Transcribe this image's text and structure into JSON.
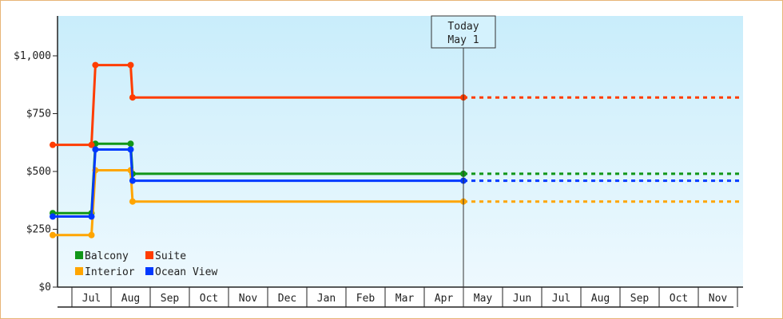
{
  "chart_data": {
    "type": "line",
    "step": true,
    "y_tick_labels": [
      "$0",
      "$250",
      "$500",
      "$750",
      "$1,000"
    ],
    "y_ticks": [
      0,
      250,
      500,
      750,
      1000
    ],
    "ylim": [
      0,
      1000
    ],
    "x_tick_labels": [
      "Jul",
      "Aug",
      "Sep",
      "Oct",
      "Nov",
      "Dec",
      "Jan",
      "Feb",
      "Mar",
      "Apr",
      "May",
      "Jun",
      "Jul",
      "Aug",
      "Sep",
      "Oct",
      "Nov"
    ],
    "today_marker": {
      "line1": "Today",
      "line2": "May 1"
    },
    "legend_position": "bottom-left",
    "series": [
      {
        "name": "Balcony",
        "color": "#109618",
        "points": [
          [
            0,
            320
          ],
          [
            0.5,
            320
          ],
          [
            0.6,
            620
          ],
          [
            1.5,
            620
          ],
          [
            1.55,
            490
          ],
          [
            10,
            490
          ]
        ],
        "forecast_until": 17
      },
      {
        "name": "Suite",
        "color": "#ff3d00",
        "points": [
          [
            0,
            615
          ],
          [
            0.5,
            615
          ],
          [
            0.6,
            960
          ],
          [
            1.5,
            960
          ],
          [
            1.55,
            820
          ],
          [
            10,
            820
          ]
        ],
        "forecast_until": 17
      },
      {
        "name": "Interior",
        "color": "#ffa500",
        "points": [
          [
            0,
            225
          ],
          [
            0.5,
            225
          ],
          [
            0.6,
            505
          ],
          [
            1.5,
            505
          ],
          [
            1.55,
            370
          ],
          [
            10,
            370
          ]
        ],
        "forecast_until": 17
      },
      {
        "name": "Ocean View",
        "color": "#0039ff",
        "points": [
          [
            0,
            305
          ],
          [
            0.5,
            305
          ],
          [
            0.6,
            595
          ],
          [
            1.5,
            595
          ],
          [
            1.55,
            460
          ],
          [
            10,
            460
          ]
        ],
        "forecast_until": 17
      }
    ]
  }
}
